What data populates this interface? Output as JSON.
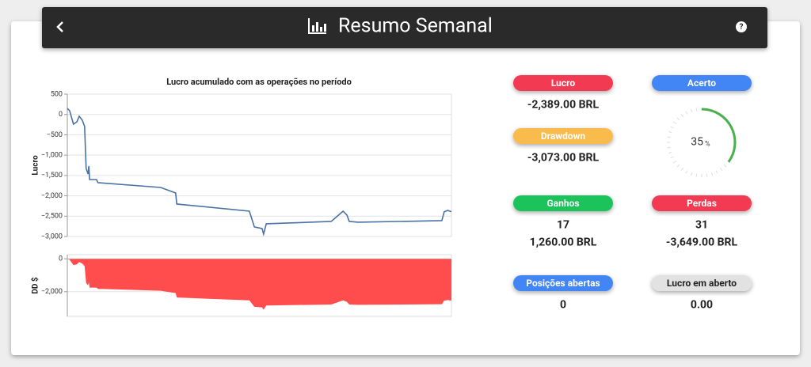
{
  "header": {
    "title": "Resumo Semanal"
  },
  "charts": [
    {
      "type": "line",
      "title": "Lucro acumulado com as operações no período",
      "ylabel": "Lucro",
      "color": "#4a72a6",
      "grid": true,
      "x": [
        0,
        0.6,
        1.6,
        2.5,
        3.1,
        3.9,
        4.5,
        4.9,
        5.4,
        5.6,
        5.8,
        7.6,
        8.0,
        24.3,
        28.2,
        28.5,
        47.4,
        48.7,
        50.7,
        51.1,
        51.8,
        68.7,
        71.8,
        72.8,
        73.4,
        75.7,
        97.5,
        98.1,
        99.0,
        100
      ],
      "values": [
        150,
        92,
        -239,
        -180,
        -44,
        -142,
        -297,
        -1327,
        -1464,
        -1269,
        -1600,
        -1600,
        -1677,
        -1794,
        -1930,
        -2202,
        -2377,
        -2766,
        -2805,
        -2941,
        -2688,
        -2630,
        -2377,
        -2474,
        -2630,
        -2649,
        -2610,
        -2396,
        -2358,
        -2389
      ],
      "xlim": [
        0,
        100
      ],
      "ylim": [
        -3000,
        500
      ],
      "yticks": [
        500,
        0,
        {
          "value": -500,
          "label": "−500"
        },
        {
          "value": -1000,
          "label": "−1,000"
        },
        {
          "value": -1500,
          "label": "−1,500"
        },
        {
          "value": -2000,
          "label": "−2,000"
        },
        {
          "value": -2500,
          "label": "−2,500"
        },
        {
          "value": -3000,
          "label": "−3,000"
        }
      ]
    },
    {
      "type": "area",
      "ylabel": "DD $",
      "color": "#ff4d4d",
      "grid": true,
      "x": [
        0,
        0.6,
        1.6,
        2.5,
        3.1,
        3.9,
        4.5,
        4.9,
        5.4,
        5.6,
        5.8,
        7.6,
        8.0,
        24.3,
        28.2,
        28.5,
        47.4,
        48.7,
        50.7,
        51.1,
        51.8,
        68.7,
        71.8,
        72.8,
        73.4,
        75.7,
        97.5,
        98.1,
        99.0,
        100
      ],
      "values": [
        0,
        -58,
        -389,
        -330,
        -194,
        -292,
        -447,
        -1477,
        -1614,
        -1419,
        -1750,
        -1750,
        -1827,
        -1944,
        -2080,
        -2352,
        -2527,
        -2916,
        -2955,
        -3091,
        -2838,
        -2780,
        -2527,
        -2624,
        -2780,
        -2799,
        -2760,
        -2546,
        -2508,
        -2539
      ],
      "xlim": [
        0,
        100
      ],
      "ylim": [
        -3500,
        250
      ],
      "yticks": [
        0,
        {
          "value": -2000,
          "label": "−2,000"
        }
      ]
    }
  ],
  "stats": [
    {
      "label": "Lucro",
      "color": "#f23a52",
      "values": [
        "-2,389.00 BRL"
      ]
    },
    {
      "label": "Drawdown",
      "color": "#f9bb4b",
      "values": [
        "-3,073.00 BRL"
      ]
    },
    {
      "label": "Ganhos",
      "color": "#1ec25a",
      "values": [
        "17",
        "1,260.00 BRL"
      ]
    },
    {
      "label": "Perdas",
      "color": "#f23a52",
      "values": [
        "31",
        "-3,649.00 BRL"
      ]
    },
    {
      "label": "Posições abertas",
      "color": "#4285f4",
      "values": [
        "0"
      ]
    },
    {
      "label": "Lucro em aberto",
      "color": "#e2e2e2",
      "values": [
        "0.00"
      ]
    }
  ],
  "gauge": {
    "label": "Acerto",
    "color": "#4285f4",
    "arc_color": "#4caf50",
    "value": 35,
    "unit": "%"
  }
}
